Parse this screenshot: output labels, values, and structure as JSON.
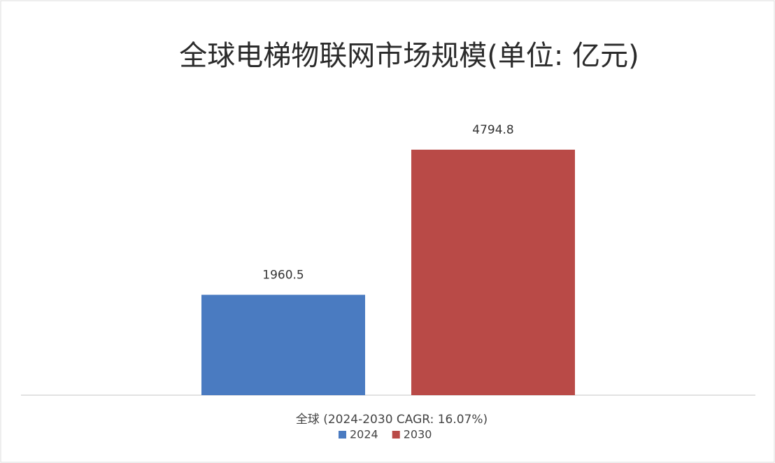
{
  "chart_data": {
    "type": "bar",
    "title": "全球电梯物联网市场规模(单位: 亿元)",
    "categories": [
      "全球 (2024-2030 CAGR: 16.07%)"
    ],
    "series": [
      {
        "name": "2024",
        "color": "#4a7bc1",
        "values": [
          1960.5
        ]
      },
      {
        "name": "2030",
        "color": "#b94a47",
        "values": [
          4794.8
        ]
      }
    ]
  }
}
